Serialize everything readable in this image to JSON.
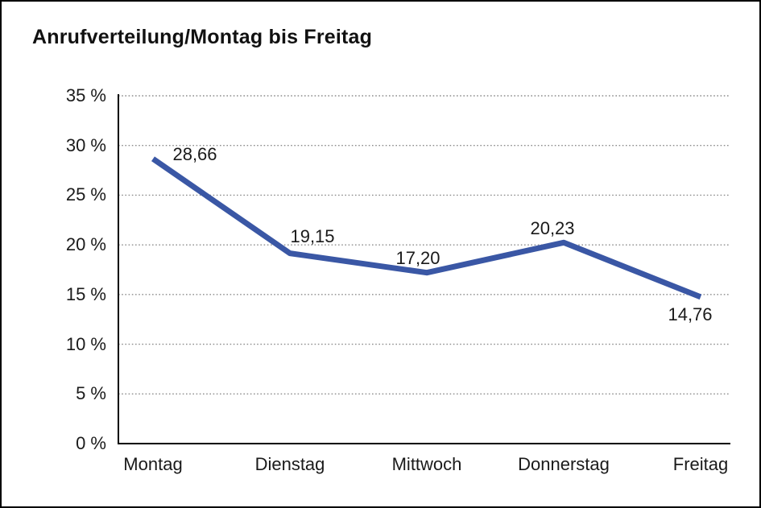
{
  "page": {
    "title": "Anrufverteilung/Montag bis Freitag"
  },
  "chart_data": {
    "type": "line",
    "title": "Anrufverteilung/Montag bis Freitag",
    "categories": [
      "Montag",
      "Dienstag",
      "Mittwoch",
      "Donnerstag",
      "Freitag"
    ],
    "series": [
      {
        "name": "Anrufverteilung",
        "values": [
          28.66,
          19.15,
          17.2,
          20.23,
          14.76
        ],
        "value_labels": [
          "28,66",
          "19,15",
          "17,20",
          "20,23",
          "14,76"
        ]
      }
    ],
    "xlabel": "",
    "ylabel": "",
    "ylim": [
      0,
      35
    ],
    "y_tick_step": 5,
    "y_tick_labels": [
      "0 %",
      "5 %",
      "10 %",
      "15 %",
      "20 %",
      "25 %",
      "30 %",
      "35 %"
    ],
    "grid": "horizontal-dotted",
    "legend_position": "none",
    "colors": {
      "line": "#3A57A5",
      "gridline": "#8c8c8c",
      "axis": "#000000",
      "text": "#1a1a1a",
      "background": "#ffffff"
    }
  }
}
